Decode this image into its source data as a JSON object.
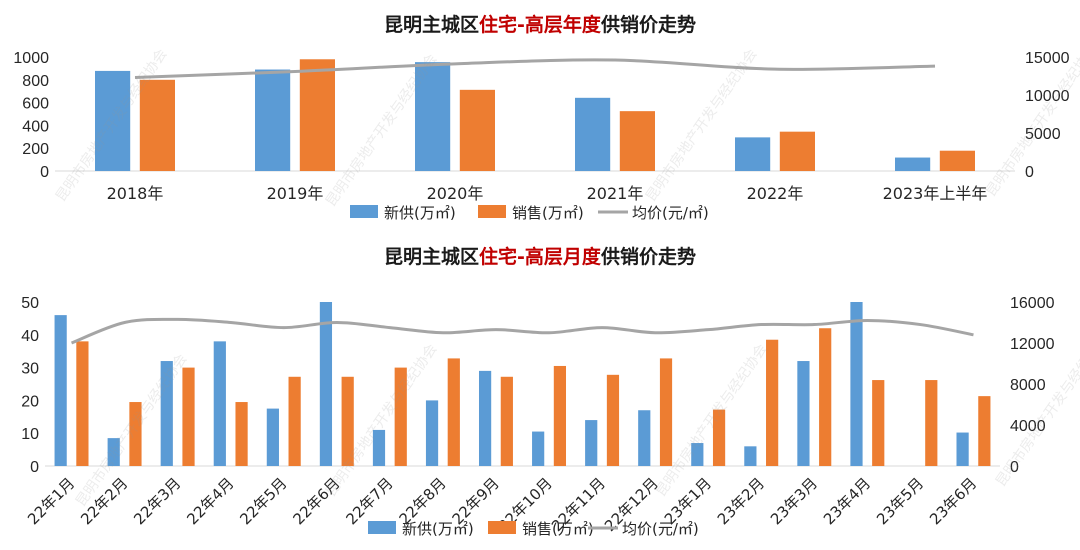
{
  "colors": {
    "supply": "#5b9bd5",
    "sales": "#ed7d31",
    "price": "#a5a5a5",
    "highlight": "#c00000"
  },
  "watermark": "昆明市房地产开发与经纪协会",
  "chart_data": [
    {
      "type": "bar",
      "title_prefix": "昆明主城区",
      "title_highlight": "住宅-高层年度",
      "title_suffix": "供销价走势",
      "categories": [
        "2018年",
        "2019年",
        "2020年",
        "2021年",
        "2022年",
        "2023年上半年"
      ],
      "series": [
        {
          "name": "新供(万㎡)",
          "values": [
            878,
            890,
            955,
            642,
            295,
            118
          ],
          "axis": "left"
        },
        {
          "name": "销售(万㎡)",
          "values": [
            800,
            980,
            712,
            525,
            345,
            178
          ],
          "axis": "left"
        },
        {
          "name": "均价(元/㎡)",
          "values": [
            12300,
            13100,
            14100,
            14600,
            13400,
            13800
          ],
          "axis": "right",
          "type": "line"
        }
      ],
      "y_left": {
        "range": [
          0,
          1000
        ],
        "ticks": [
          0,
          200,
          400,
          600,
          800,
          1000
        ]
      },
      "y_right": {
        "range": [
          0,
          15000
        ],
        "ticks": [
          0,
          5000,
          10000,
          15000
        ]
      },
      "legend": [
        "新供(万㎡)",
        "销售(万㎡)",
        "均价(元/㎡)"
      ]
    },
    {
      "type": "bar",
      "title_prefix": "昆明主城区",
      "title_highlight": "住宅-高层月度",
      "title_suffix": "供销价走势",
      "categories": [
        "22年1月",
        "22年2月",
        "22年3月",
        "22年4月",
        "22年5月",
        "22年6月",
        "22年7月",
        "22年8月",
        "22年9月",
        "22年10月",
        "22年11月",
        "22年12月",
        "23年1月",
        "23年2月",
        "23年3月",
        "23年4月",
        "23年5月",
        "23年6月"
      ],
      "series": [
        {
          "name": "新供(万㎡)",
          "values": [
            46,
            8.5,
            32,
            38,
            17.5,
            50,
            11,
            20,
            29,
            10.5,
            14,
            17,
            7,
            6,
            32,
            50,
            0,
            10.2
          ],
          "axis": "left"
        },
        {
          "name": "销售(万㎡)",
          "values": [
            38,
            19.5,
            30,
            19.5,
            27.2,
            27.2,
            30,
            32.8,
            27.2,
            30.5,
            27.8,
            32.8,
            17.2,
            38.5,
            42,
            26.2,
            26.2,
            21.3
          ],
          "axis": "left"
        },
        {
          "name": "均价(元/㎡)",
          "values": [
            12000,
            14000,
            14300,
            14000,
            13500,
            14000,
            13500,
            13000,
            13300,
            13000,
            13500,
            13000,
            13300,
            13800,
            13800,
            14200,
            13800,
            12800
          ],
          "axis": "right",
          "type": "line"
        }
      ],
      "y_left": {
        "range": [
          0,
          50
        ],
        "ticks": [
          0,
          10,
          20,
          30,
          40,
          50
        ]
      },
      "y_right": {
        "range": [
          0,
          16000
        ],
        "ticks": [
          0,
          4000,
          8000,
          12000,
          16000
        ]
      },
      "legend": [
        "新供(万㎡)",
        "销售(万㎡)",
        "均价(元/㎡)"
      ]
    }
  ]
}
